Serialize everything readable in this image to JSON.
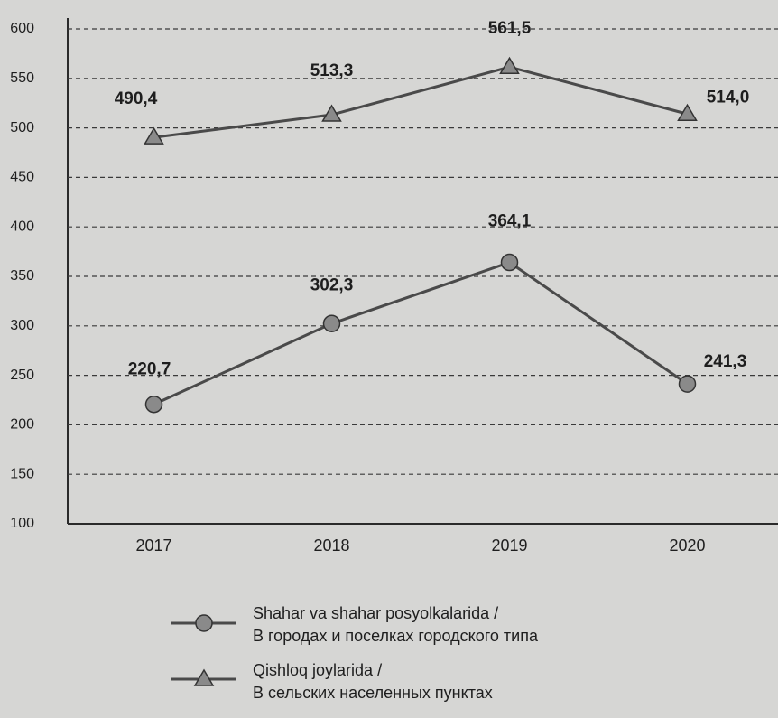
{
  "chart_data": {
    "type": "line",
    "categories": [
      "2017",
      "2018",
      "2019",
      "2020"
    ],
    "series": [
      {
        "name": "Shahar va shahar posyolkalarida /\nВ городах и поселках городского типа",
        "color": "#4a4a4a",
        "marker": "circle",
        "values": [
          220.7,
          302.3,
          364.1,
          241.3
        ],
        "value_labels": [
          "220,7",
          "302,3",
          "364,1",
          "241,3"
        ]
      },
      {
        "name": "Qishloq joylarida /\nВ сельских населенных пунктах",
        "color": "#4a4a4a",
        "marker": "triangle",
        "values": [
          490.4,
          513.3,
          561.5,
          514.0
        ],
        "value_labels": [
          "490,4",
          "513,3",
          "561,5",
          "514,0"
        ]
      }
    ],
    "ylim": [
      100,
      600
    ],
    "yticks": [
      100,
      150,
      200,
      250,
      300,
      350,
      400,
      450,
      500,
      550,
      600
    ],
    "grid": true
  }
}
